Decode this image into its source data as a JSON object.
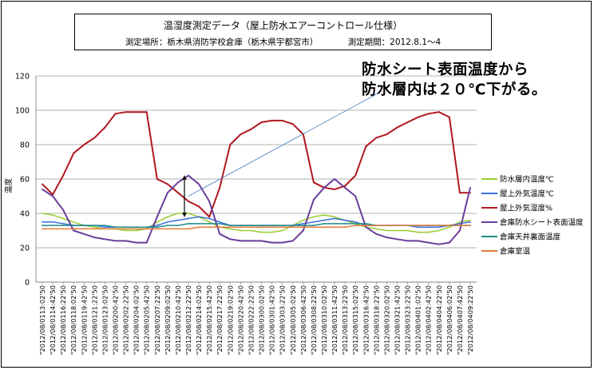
{
  "title": "温湿度測定データ（屋上防水エアーコントロール仕様）",
  "subtitle_location": "測定場所：栃木県消防学校倉庫（栃木県宇都宮市）",
  "subtitle_period": "測定期間：2012.8.1～4",
  "annotation": [
    "防水シート表面温度から",
    "防水層内は２０℃下がる。"
  ],
  "chart_data": {
    "type": "line",
    "title": "温湿度測定データ（屋上防水エアーコントロール仕様）",
    "ylabel": "温度",
    "ylim": [
      0,
      120
    ],
    "yticks": [
      0,
      20,
      40,
      60,
      80,
      100,
      120
    ],
    "grid": true,
    "legend_position": "right",
    "x_tick_labels": [
      "2012/08/0113:02'50",
      "2012/08/0114:42'50",
      "2012/08/0116:22'50",
      "2012/08/0118:02'50",
      "2012/08/0119:42'50",
      "2012/08/0121:22'50",
      "2012/08/0123:02'50",
      "2012/08/0200:42'50",
      "2012/08/0202:22'50",
      "2012/08/0204:02'50",
      "2012/08/0205:42'50",
      "2012/08/0207:22'50",
      "2012/08/0209:02'50",
      "2012/08/0210:42'50",
      "2012/08/0212:22'50",
      "2012/08/0214:02'50",
      "2012/08/0215:42'50",
      "2012/08/0217:22'50",
      "2012/08/0219:02'50",
      "2012/08/0220:42'50",
      "2012/08/0222:22'50",
      "2012/08/0300:02'50",
      "2012/08/0301:42'50",
      "2012/08/0303:22'50",
      "2012/08/0305:02'50",
      "2012/08/0306:42'50",
      "2012/08/0308:22'50",
      "2012/08/0310:02'50",
      "2012/08/0311:42'50",
      "2012/08/0313:22'50",
      "2012/08/0315:02'50",
      "2012/08/0316:42'50",
      "2012/08/0318:22'50",
      "2012/08/0320:02'50",
      "2012/08/0321:42'50",
      "2012/08/0323:22'50",
      "2012/08/0401:02'50",
      "2012/08/0402:42'50",
      "2012/08/0404:22'50",
      "2012/08/0406:02'50",
      "2012/08/0407:42'50",
      "2012/08/0409:22'50"
    ],
    "series": [
      {
        "name": "防水層内温度℃",
        "color": "#9acd32",
        "values": [
          40,
          39,
          37,
          35,
          33,
          32,
          31,
          31,
          30,
          30,
          31,
          35,
          38,
          40,
          40,
          38,
          35,
          32,
          31,
          30,
          30,
          29,
          29,
          30,
          33,
          36,
          38,
          39,
          38,
          36,
          34,
          32,
          31,
          30,
          30,
          30,
          29,
          29,
          30,
          32,
          35,
          36
        ]
      },
      {
        "name": "屋上外気温度℃",
        "color": "#3a6fd8",
        "values": [
          35,
          35,
          34,
          33,
          33,
          33,
          32,
          32,
          32,
          32,
          32,
          33,
          35,
          36,
          37,
          38,
          37,
          35,
          33,
          33,
          33,
          33,
          33,
          33,
          33,
          34,
          35,
          36,
          37,
          36,
          35,
          33,
          33,
          33,
          33,
          33,
          32,
          32,
          32,
          33,
          34,
          35
        ]
      },
      {
        "name": "屋上外気湿度%",
        "color": "#b0171f",
        "values": [
          57,
          51,
          62,
          75,
          80,
          84,
          90,
          98,
          99,
          99,
          99,
          60,
          57,
          52,
          47,
          44,
          38,
          55,
          80,
          86,
          89,
          93,
          94,
          94,
          92,
          86,
          58,
          55,
          54,
          56,
          62,
          79,
          84,
          86,
          90,
          93,
          96,
          98,
          99,
          96,
          52,
          52
        ]
      },
      {
        "name": "倉庫防水シート表面温度",
        "color": "#6a3d9a",
        "values": [
          54,
          50,
          42,
          30,
          28,
          26,
          25,
          24,
          24,
          23,
          23,
          38,
          52,
          58,
          62,
          57,
          47,
          28,
          25,
          24,
          24,
          24,
          23,
          23,
          24,
          30,
          48,
          55,
          60,
          55,
          50,
          32,
          28,
          26,
          25,
          24,
          24,
          23,
          22,
          23,
          30,
          55
        ]
      },
      {
        "name": "倉庫天井裏面温度",
        "color": "#1f8b8b",
        "values": [
          33,
          33,
          33,
          33,
          33,
          33,
          33,
          32,
          32,
          32,
          32,
          32,
          33,
          33,
          34,
          34,
          34,
          34,
          33,
          33,
          33,
          33,
          33,
          33,
          33,
          33,
          33,
          34,
          34,
          34,
          34,
          34,
          33,
          33,
          33,
          33,
          33,
          33,
          33,
          33,
          33,
          33
        ]
      },
      {
        "name": "倉庫室温",
        "color": "#e07b39",
        "values": [
          31,
          31,
          31,
          31,
          31,
          31,
          31,
          31,
          31,
          31,
          31,
          31,
          31,
          31,
          31,
          32,
          32,
          32,
          32,
          32,
          32,
          32,
          32,
          32,
          32,
          32,
          32,
          32,
          32,
          32,
          33,
          33,
          33,
          33,
          33,
          33,
          33,
          33,
          33,
          33,
          33,
          33
        ]
      }
    ]
  }
}
